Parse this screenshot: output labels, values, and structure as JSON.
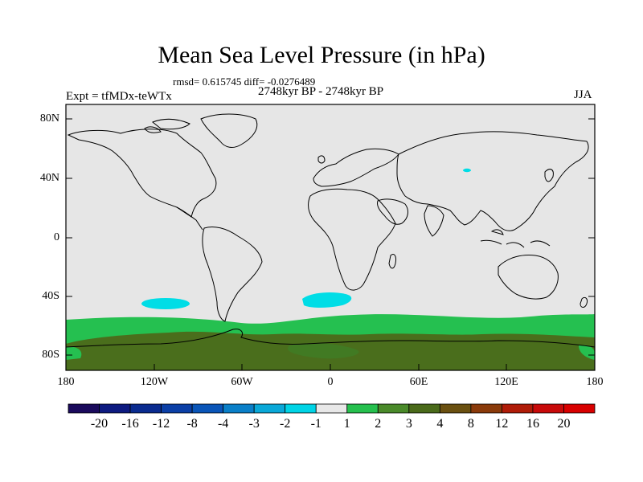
{
  "title": "Mean Sea Level Pressure (in hPa)",
  "stats": "rmsd= 0.615745 diff= -0.0276489",
  "experiment": "Expt = tfMDx-teWTx",
  "period": "2748kyr BP - 2748kyr BP",
  "season": "JJA",
  "y_ticks": [
    "80N",
    "40N",
    "0",
    "40S",
    "80S"
  ],
  "x_ticks": [
    "180",
    "120W",
    "60W",
    "0",
    "60E",
    "120E",
    "180"
  ],
  "colorbar": {
    "labels": [
      "-20",
      "-16",
      "-12",
      "-8",
      "-4",
      "-3",
      "-2",
      "-1",
      "1",
      "2",
      "3",
      "4",
      "8",
      "12",
      "16",
      "20"
    ],
    "colors": [
      "#1a0a5c",
      "#0d1a80",
      "#0a2b8f",
      "#0b3fa6",
      "#0a55b8",
      "#0a7fc8",
      "#0aa8d8",
      "#00d4e6",
      "#e8e8e8",
      "#26c04e",
      "#4a8a2a",
      "#4a6a1a",
      "#6a5010",
      "#8a3a0a",
      "#b01c08",
      "#c80a0a",
      "#d80000"
    ]
  },
  "colors": {
    "background_field": "#e6e6e6",
    "ocean_green": "#25c050",
    "antarctic_dark": "#4a6e1c",
    "negative_cyan": "#00dde6"
  }
}
